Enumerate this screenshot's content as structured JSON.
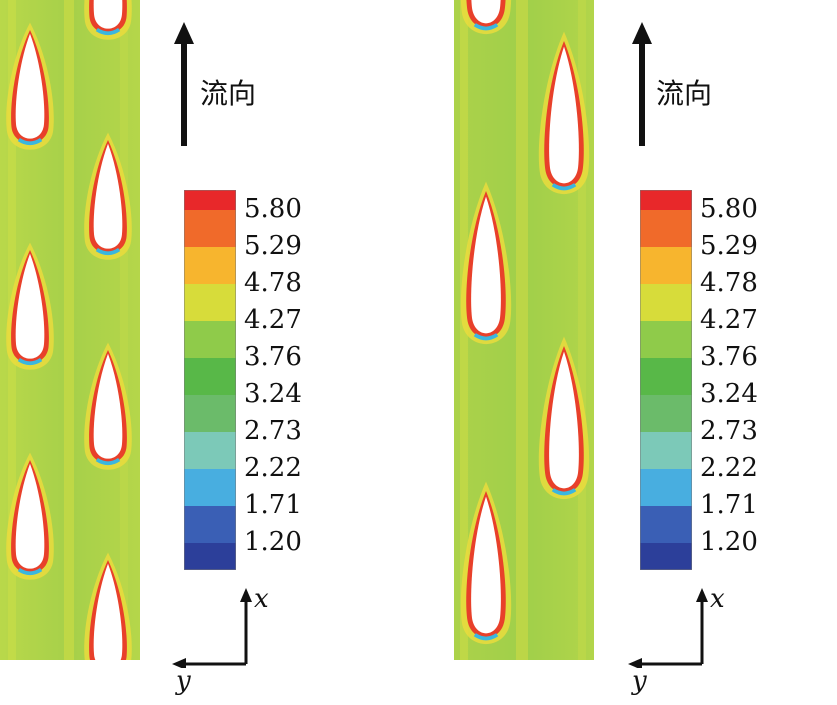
{
  "flow_label": "流向",
  "axis": {
    "x": "x",
    "y": "y"
  },
  "colorbar": {
    "levels": [
      "5.80",
      "5.29",
      "4.78",
      "4.27",
      "3.76",
      "3.24",
      "2.73",
      "2.22",
      "1.71",
      "1.20"
    ],
    "colors": [
      "#e8282a",
      "#f06a2a",
      "#f7b52e",
      "#d7dc3a",
      "#8fcb4a",
      "#58b848",
      "#6bbb6a",
      "#7cc9b8",
      "#48aee0",
      "#3a5fb5",
      "#2c3f9a"
    ]
  },
  "colors": {
    "field_base": "#a8d24a",
    "fin_edge": "#e8402a",
    "fin_wake": "#f2d63a",
    "fin_tip": "#3ab6e0"
  }
}
